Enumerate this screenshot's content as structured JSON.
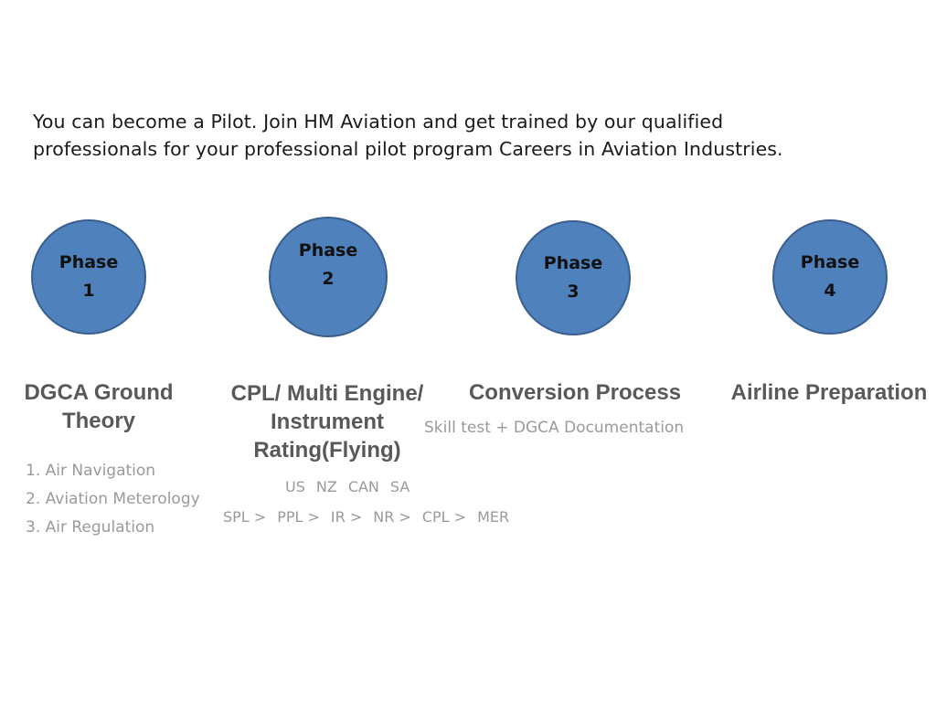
{
  "intro": {
    "line1": "You can become a Pilot. Join HM Aviation and get trained by our qualified",
    "line2": "professionals for your professional pilot program Careers in Aviation Industries."
  },
  "phases": [
    {
      "word": "Phase",
      "number": "1",
      "title_lines": [
        "DGCA Ground",
        "Theory"
      ],
      "items": [
        "1. Air Navigation",
        "2. Aviation Meterology",
        "3. Air Regulation"
      ]
    },
    {
      "word": "Phase",
      "number": "2",
      "title_lines": [
        "CPL/ Multi Engine/",
        "Instrument",
        "Rating(Flying)"
      ],
      "countries": [
        "US",
        "NZ",
        "CAN",
        "SA"
      ],
      "licences": [
        "SPL >",
        "PPL >",
        "IR >",
        "NR >",
        "CPL >",
        "MER"
      ]
    },
    {
      "word": "Phase",
      "number": "3",
      "title_lines": [
        "Conversion Process"
      ],
      "note": "Skill test + DGCA Documentation"
    },
    {
      "word": "Phase",
      "number": "4",
      "title_lines": [
        "Airline Preparation"
      ]
    }
  ],
  "colors": {
    "circle_fill": "#4f81bd",
    "circle_border": "#3a5f8f",
    "title": "#595959",
    "muted": "#9a9a9a"
  }
}
